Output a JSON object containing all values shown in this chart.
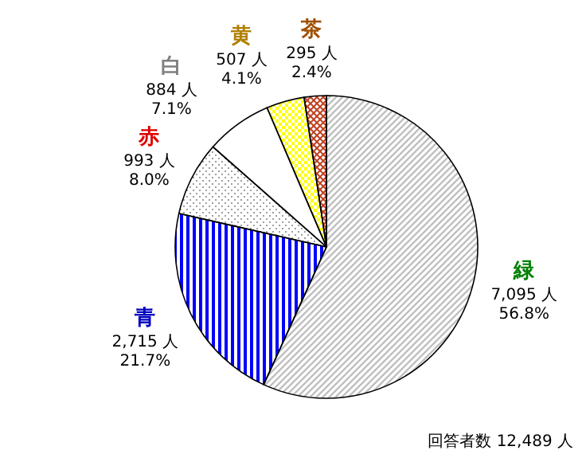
{
  "chart_data": {
    "type": "pie",
    "categories": [
      "緑",
      "青",
      "赤",
      "白",
      "黄",
      "茶"
    ],
    "values": [
      7095,
      2715,
      993,
      884,
      507,
      295
    ],
    "colors": [
      "#c0c0c0",
      "#0000ff",
      "#a0a0a0",
      "#ffffff",
      "#ffff00",
      "#c04020"
    ],
    "value_labels": [
      "7,095 人\n56.8%",
      "2,715 人\n21.7%",
      "993 人\n8.0%",
      "884 人\n7.1%",
      "507 人\n4.1%",
      "295 人\n2.4%"
    ],
    "annotations": [
      "回答者数 12,489 人"
    ]
  }
}
